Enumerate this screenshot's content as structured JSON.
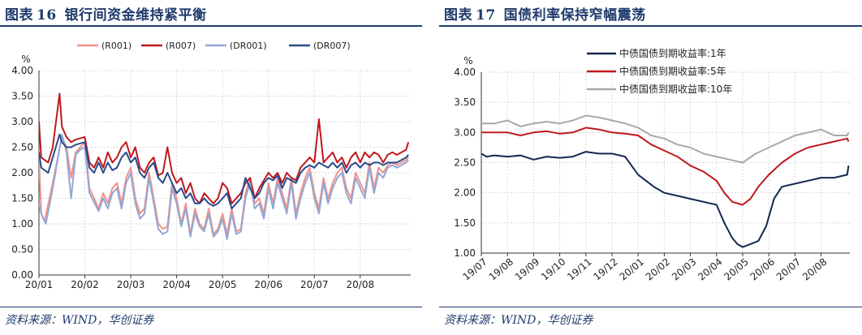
{
  "figures": [
    {
      "label": "图表",
      "number": "16",
      "title": "银行间资金维持紧平衡",
      "source": "资料来源：WIND，华创证券"
    },
    {
      "label": "图表",
      "number": "17",
      "title": "国债利率保持窄幅震荡",
      "source": "资料来源：WIND，华创证券"
    }
  ],
  "chart_data": [
    {
      "type": "line",
      "unit": "%",
      "ylim": [
        0,
        4
      ],
      "yticks": [
        "0.00",
        "0.50",
        "1.00",
        "1.50",
        "2.00",
        "2.50",
        "3.00",
        "3.50",
        "4.00"
      ],
      "xticks": [
        "20/01",
        "20/02",
        "20/03",
        "20/04",
        "20/05",
        "20/06",
        "20/07",
        "20/08"
      ],
      "xtick_positions": [
        0,
        1,
        2,
        3,
        4,
        5,
        6,
        7
      ],
      "xlim": [
        0,
        8.1
      ],
      "grid": true,
      "legend": "top",
      "series": [
        {
          "name": "(R001)",
          "color": "#f0928e",
          "x": [
            0,
            0.05,
            0.12,
            0.3,
            0.5,
            0.6,
            0.7,
            0.8,
            0.9,
            1.0,
            1.1,
            1.3,
            1.4,
            1.5,
            1.6,
            1.7,
            1.8,
            1.9,
            2.0,
            2.1,
            2.2,
            2.3,
            2.4,
            2.5,
            2.6,
            2.7,
            2.8,
            2.9,
            3.0,
            3.1,
            3.2,
            3.3,
            3.4,
            3.5,
            3.6,
            3.7,
            3.8,
            3.9,
            4.0,
            4.1,
            4.2,
            4.3,
            4.4,
            4.5,
            4.6,
            4.7,
            4.8,
            4.9,
            5.0,
            5.1,
            5.2,
            5.3,
            5.4,
            5.5,
            5.6,
            5.7,
            5.8,
            5.9,
            6.0,
            6.1,
            6.2,
            6.3,
            6.4,
            6.5,
            6.6,
            6.7,
            6.8,
            6.9,
            7.0,
            7.1,
            7.2,
            7.3,
            7.4,
            7.5,
            7.6,
            7.7,
            7.8,
            7.9,
            8.0,
            8.05
          ],
          "values": [
            2.3,
            1.2,
            1.05,
            1.8,
            2.7,
            2.5,
            1.9,
            2.4,
            2.5,
            2.6,
            1.7,
            1.3,
            1.6,
            1.4,
            1.7,
            1.8,
            1.4,
            1.9,
            2.1,
            1.5,
            1.2,
            1.3,
            2.0,
            1.5,
            1.0,
            0.9,
            0.95,
            1.8,
            1.5,
            1.0,
            1.4,
            0.8,
            1.3,
            1.0,
            0.9,
            1.3,
            0.8,
            0.9,
            1.2,
            0.8,
            1.3,
            0.85,
            0.9,
            1.6,
            1.9,
            1.4,
            1.5,
            1.2,
            1.8,
            1.4,
            1.9,
            1.6,
            1.3,
            1.9,
            1.2,
            1.6,
            1.9,
            2.1,
            1.6,
            1.3,
            1.9,
            1.5,
            1.8,
            2.0,
            2.1,
            1.7,
            1.5,
            2.0,
            1.8,
            1.6,
            2.2,
            1.7,
            2.1,
            2.0,
            2.15,
            2.2,
            2.15,
            2.2,
            2.25,
            2.3
          ]
        },
        {
          "name": "(R007)",
          "color": "#c0181c",
          "x": [
            0,
            0.05,
            0.2,
            0.3,
            0.45,
            0.5,
            0.6,
            0.7,
            0.8,
            1.0,
            1.1,
            1.2,
            1.3,
            1.4,
            1.5,
            1.6,
            1.7,
            1.8,
            1.9,
            2.0,
            2.1,
            2.2,
            2.3,
            2.4,
            2.5,
            2.6,
            2.7,
            2.8,
            2.9,
            3.0,
            3.1,
            3.2,
            3.3,
            3.4,
            3.5,
            3.6,
            3.7,
            3.8,
            3.9,
            4.0,
            4.1,
            4.2,
            4.3,
            4.4,
            4.5,
            4.6,
            4.7,
            4.8,
            4.9,
            5.0,
            5.1,
            5.2,
            5.3,
            5.4,
            5.5,
            5.6,
            5.7,
            5.8,
            5.9,
            6.0,
            6.1,
            6.2,
            6.3,
            6.4,
            6.5,
            6.6,
            6.7,
            6.8,
            6.9,
            7.0,
            7.1,
            7.2,
            7.3,
            7.4,
            7.5,
            7.6,
            7.7,
            7.8,
            7.9,
            8.0,
            8.05
          ],
          "values": [
            3.0,
            2.3,
            2.2,
            2.5,
            3.55,
            2.9,
            2.7,
            2.6,
            2.65,
            2.7,
            2.2,
            2.1,
            2.3,
            2.1,
            2.4,
            2.2,
            2.3,
            2.5,
            2.6,
            2.3,
            2.5,
            2.1,
            2.0,
            2.2,
            2.3,
            1.95,
            2.0,
            2.5,
            2.0,
            1.8,
            1.9,
            1.6,
            1.8,
            1.5,
            1.4,
            1.6,
            1.5,
            1.4,
            1.5,
            1.8,
            1.7,
            1.4,
            1.5,
            1.6,
            1.8,
            1.9,
            1.5,
            1.7,
            1.85,
            2.0,
            1.9,
            2.0,
            1.8,
            2.0,
            1.9,
            1.85,
            2.1,
            2.2,
            2.3,
            2.2,
            3.05,
            2.2,
            2.3,
            2.4,
            2.2,
            2.3,
            2.1,
            2.3,
            2.4,
            2.2,
            2.4,
            2.3,
            2.4,
            2.35,
            2.2,
            2.35,
            2.4,
            2.35,
            2.4,
            2.45,
            2.6
          ]
        },
        {
          "name": "(DR001)",
          "color": "#93a8d2",
          "x": [
            0,
            0.05,
            0.15,
            0.3,
            0.5,
            0.6,
            0.7,
            0.8,
            0.9,
            1.0,
            1.1,
            1.3,
            1.4,
            1.5,
            1.6,
            1.7,
            1.8,
            1.9,
            2.0,
            2.1,
            2.2,
            2.3,
            2.4,
            2.5,
            2.6,
            2.7,
            2.8,
            2.9,
            3.0,
            3.1,
            3.2,
            3.3,
            3.4,
            3.5,
            3.6,
            3.7,
            3.8,
            3.9,
            4.0,
            4.1,
            4.2,
            4.3,
            4.4,
            4.5,
            4.6,
            4.7,
            4.8,
            4.9,
            5.0,
            5.1,
            5.2,
            5.3,
            5.4,
            5.5,
            5.6,
            5.7,
            5.8,
            5.9,
            6.0,
            6.1,
            6.2,
            6.3,
            6.4,
            6.5,
            6.6,
            6.7,
            6.8,
            6.9,
            7.0,
            7.1,
            7.2,
            7.3,
            7.4,
            7.5,
            7.6,
            7.7,
            7.8,
            7.9,
            8.0,
            8.05
          ],
          "values": [
            1.4,
            1.2,
            1.0,
            1.7,
            2.75,
            2.4,
            1.5,
            2.35,
            2.45,
            2.5,
            1.6,
            1.25,
            1.5,
            1.3,
            1.6,
            1.7,
            1.3,
            1.8,
            2.0,
            1.4,
            1.1,
            1.2,
            1.9,
            1.4,
            0.9,
            0.8,
            0.85,
            1.7,
            1.4,
            0.95,
            1.3,
            0.75,
            1.2,
            0.95,
            0.85,
            1.2,
            0.75,
            0.85,
            1.1,
            0.7,
            1.2,
            0.8,
            0.85,
            1.5,
            1.8,
            1.3,
            1.4,
            1.1,
            1.7,
            1.3,
            1.8,
            1.5,
            1.2,
            1.8,
            1.1,
            1.5,
            1.8,
            2.0,
            1.5,
            1.2,
            1.8,
            1.4,
            1.7,
            1.9,
            2.0,
            1.6,
            1.4,
            1.9,
            1.7,
            1.5,
            2.1,
            1.6,
            2.0,
            1.9,
            2.1,
            2.15,
            2.1,
            2.15,
            2.2,
            2.25
          ]
        },
        {
          "name": "(DR007)",
          "color": "#2a4b8d",
          "x": [
            0,
            0.05,
            0.2,
            0.3,
            0.45,
            0.5,
            0.6,
            0.7,
            0.8,
            1.0,
            1.1,
            1.2,
            1.3,
            1.4,
            1.5,
            1.6,
            1.7,
            1.8,
            1.9,
            2.0,
            2.1,
            2.2,
            2.3,
            2.4,
            2.5,
            2.6,
            2.7,
            2.8,
            2.9,
            3.0,
            3.1,
            3.2,
            3.3,
            3.4,
            3.5,
            3.6,
            3.7,
            3.8,
            3.9,
            4.0,
            4.1,
            4.2,
            4.3,
            4.4,
            4.5,
            4.6,
            4.7,
            4.8,
            4.9,
            5.0,
            5.1,
            5.2,
            5.3,
            5.4,
            5.5,
            5.6,
            5.7,
            5.8,
            5.9,
            6.0,
            6.1,
            6.2,
            6.3,
            6.4,
            6.5,
            6.6,
            6.7,
            6.8,
            6.9,
            7.0,
            7.1,
            7.2,
            7.3,
            7.4,
            7.5,
            7.6,
            7.7,
            7.8,
            7.9,
            8.0,
            8.05
          ],
          "values": [
            2.4,
            2.1,
            2.0,
            2.3,
            2.75,
            2.6,
            2.5,
            2.5,
            2.55,
            2.6,
            2.1,
            2.0,
            2.2,
            2.0,
            2.2,
            2.05,
            2.1,
            2.3,
            2.4,
            2.2,
            2.3,
            2.0,
            1.9,
            2.1,
            2.2,
            1.9,
            1.8,
            2.0,
            1.8,
            1.6,
            1.7,
            1.5,
            1.6,
            1.4,
            1.4,
            1.5,
            1.4,
            1.35,
            1.4,
            1.5,
            1.6,
            1.3,
            1.4,
            1.5,
            1.9,
            1.7,
            1.5,
            1.6,
            1.8,
            1.9,
            1.85,
            1.95,
            1.7,
            1.9,
            1.85,
            1.8,
            2.0,
            2.1,
            2.15,
            2.1,
            2.2,
            2.15,
            2.1,
            2.2,
            2.1,
            2.2,
            2.0,
            2.15,
            2.2,
            2.1,
            2.2,
            2.15,
            2.2,
            2.2,
            2.15,
            2.2,
            2.2,
            2.2,
            2.25,
            2.3,
            2.35
          ]
        }
      ]
    },
    {
      "type": "line",
      "unit": "%",
      "ylim": [
        1,
        4
      ],
      "yticks": [
        "1.00",
        "1.50",
        "2.00",
        "2.50",
        "3.00",
        "3.50",
        "4.00"
      ],
      "xticks": [
        "19/07",
        "19/08",
        "19/09",
        "19/10",
        "19/11",
        "19/12",
        "20/01",
        "20/02",
        "20/03",
        "20/04",
        "20/05",
        "20/06",
        "20/07",
        "20/08"
      ],
      "xtick_positions": [
        0,
        1,
        2,
        3,
        4,
        5,
        6,
        7,
        8,
        9,
        10,
        11,
        12,
        13
      ],
      "xlim": [
        0,
        14.1
      ],
      "grid": true,
      "legend": "top-right",
      "series": [
        {
          "name": "中债国债到期收益率:1年",
          "color": "#13284f",
          "x": [
            0,
            0.2,
            0.5,
            1,
            1.5,
            2,
            2.5,
            3,
            3.5,
            4,
            4.5,
            5,
            5.5,
            6,
            6.3,
            6.6,
            7,
            7.5,
            8,
            8.5,
            9,
            9.3,
            9.6,
            9.8,
            10,
            10.3,
            10.6,
            10.9,
            11.2,
            11.5,
            12,
            12.5,
            13,
            13.5,
            14,
            14.05
          ],
          "values": [
            2.65,
            2.6,
            2.62,
            2.6,
            2.62,
            2.55,
            2.6,
            2.58,
            2.6,
            2.68,
            2.65,
            2.65,
            2.6,
            2.3,
            2.2,
            2.1,
            2.0,
            1.95,
            1.9,
            1.85,
            1.8,
            1.5,
            1.25,
            1.15,
            1.1,
            1.15,
            1.2,
            1.45,
            1.9,
            2.1,
            2.15,
            2.2,
            2.25,
            2.25,
            2.3,
            2.45
          ]
        },
        {
          "name": "中债国债到期收益率:5年",
          "color": "#c0181c",
          "x": [
            0,
            0.5,
            1,
            1.5,
            2,
            2.5,
            3,
            3.5,
            4,
            4.5,
            5,
            5.5,
            6,
            6.5,
            7,
            7.5,
            8,
            8.5,
            9,
            9.3,
            9.6,
            10,
            10.3,
            10.6,
            11,
            11.5,
            12,
            12.5,
            13,
            13.5,
            14,
            14.05
          ],
          "values": [
            3.0,
            3.0,
            3.0,
            2.95,
            3.0,
            3.02,
            2.98,
            3.0,
            3.08,
            3.05,
            3.0,
            2.98,
            2.95,
            2.8,
            2.7,
            2.6,
            2.45,
            2.35,
            2.2,
            2.0,
            1.85,
            1.8,
            1.9,
            2.1,
            2.3,
            2.5,
            2.65,
            2.75,
            2.8,
            2.85,
            2.9,
            2.85
          ]
        },
        {
          "name": "中债国债到期收益率:10年",
          "color": "#a8a8a8",
          "x": [
            0,
            0.5,
            1,
            1.5,
            2,
            2.5,
            3,
            3.5,
            4,
            4.5,
            5,
            5.5,
            6,
            6.5,
            7,
            7.5,
            8,
            8.5,
            9,
            9.5,
            10,
            10.5,
            11,
            11.5,
            12,
            12.5,
            13,
            13.5,
            14,
            14.05
          ],
          "values": [
            3.15,
            3.15,
            3.2,
            3.1,
            3.15,
            3.18,
            3.15,
            3.2,
            3.28,
            3.25,
            3.2,
            3.15,
            3.08,
            2.95,
            2.9,
            2.8,
            2.75,
            2.65,
            2.6,
            2.55,
            2.5,
            2.65,
            2.75,
            2.85,
            2.95,
            3.0,
            3.05,
            2.95,
            2.95,
            3.0
          ]
        }
      ]
    }
  ]
}
